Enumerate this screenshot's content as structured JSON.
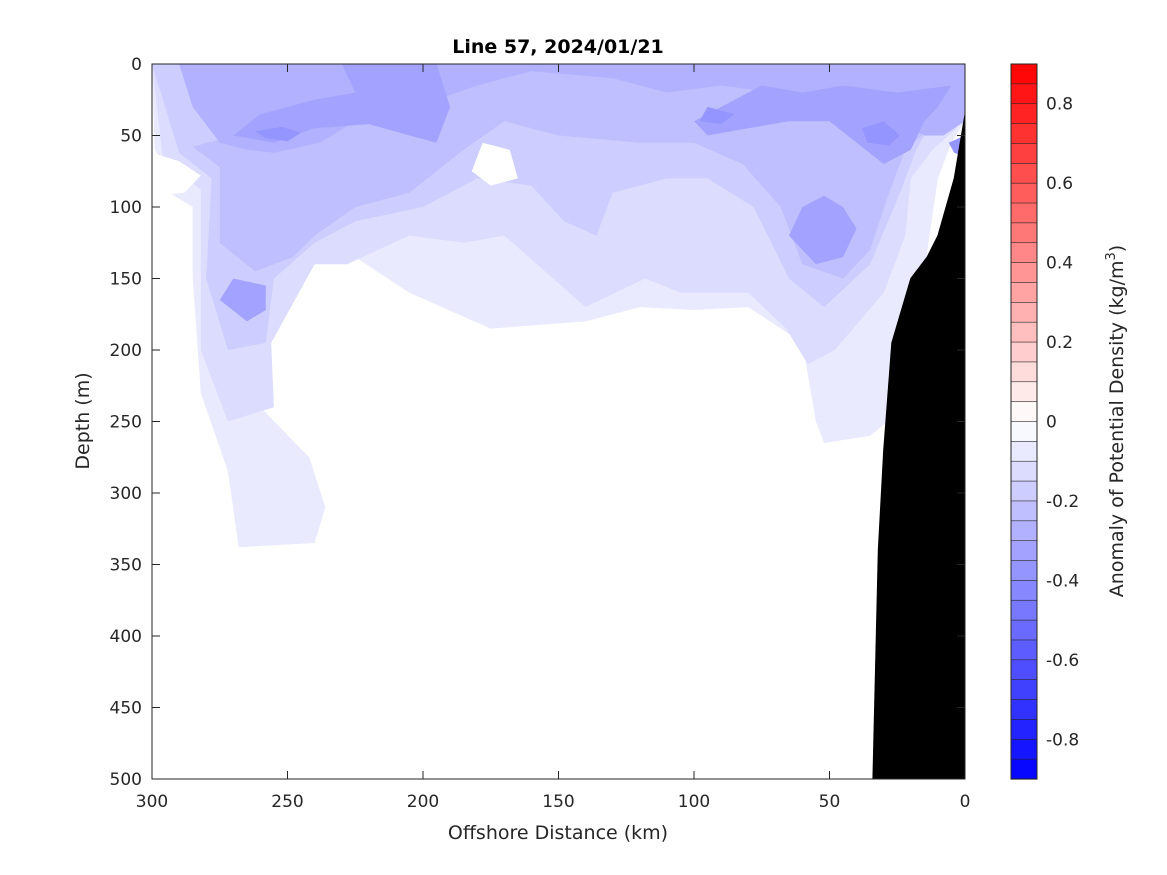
{
  "chart_data": {
    "type": "heatmap",
    "title": "Line 57, 2024/01/21",
    "xlabel": "Offshore Distance (km)",
    "ylabel": "Depth (m)",
    "xlim": [
      300,
      0
    ],
    "ylim": [
      500,
      0
    ],
    "x_ticks": [
      300,
      250,
      200,
      150,
      100,
      50,
      0
    ],
    "y_ticks": [
      0,
      50,
      100,
      150,
      200,
      250,
      300,
      350,
      400,
      450,
      500
    ],
    "colorbar": {
      "label_main": "Anomaly of Potential Density (kg/m",
      "label_sup": "3",
      "label_end": ")",
      "range": [
        -0.9,
        0.9
      ],
      "step": 0.05,
      "ticks": [
        "0.8",
        "0.6",
        "0.4",
        "0.2",
        "0",
        "-0.2",
        "-0.4",
        "-0.6",
        "-0.8"
      ],
      "tick_values": [
        0.8,
        0.6,
        0.4,
        0.2,
        0,
        -0.2,
        -0.4,
        -0.6,
        -0.8
      ],
      "positive_color": "#ff0000",
      "negative_color": "#0000ff",
      "zero_color": "#ffffff"
    },
    "bathymetry": [
      [
        0,
        35
      ],
      [
        4,
        80
      ],
      [
        10,
        120
      ],
      [
        14,
        135
      ],
      [
        20,
        150
      ],
      [
        27,
        195
      ],
      [
        30,
        270
      ],
      [
        32,
        340
      ],
      [
        33,
        420
      ],
      [
        34,
        500
      ]
    ],
    "fields": [
      {
        "level": -0.05,
        "points": [
          [
            299,
            60
          ],
          [
            295,
            72
          ],
          [
            298,
            85
          ],
          [
            285,
            100
          ],
          [
            285,
            150
          ],
          [
            282,
            230
          ],
          [
            272,
            285
          ],
          [
            268,
            338
          ],
          [
            240,
            335
          ],
          [
            236,
            310
          ],
          [
            242,
            275
          ],
          [
            260,
            240
          ],
          [
            262,
            190
          ],
          [
            245,
            120
          ],
          [
            225,
            135
          ],
          [
            205,
            160
          ],
          [
            175,
            185
          ],
          [
            140,
            180
          ],
          [
            120,
            170
          ],
          [
            100,
            172
          ],
          [
            80,
            170
          ],
          [
            60,
            195
          ],
          [
            55,
            250
          ],
          [
            52,
            265
          ],
          [
            35,
            260
          ],
          [
            22,
            240
          ],
          [
            15,
            145
          ],
          [
            10,
            80
          ],
          [
            5,
            55
          ],
          [
            0,
            40
          ],
          [
            0,
            0
          ],
          [
            300,
            0
          ]
        ]
      },
      {
        "level": -0.1,
        "points": [
          [
            296,
            66
          ],
          [
            282,
            88
          ],
          [
            282,
            200
          ],
          [
            272,
            250
          ],
          [
            255,
            240
          ],
          [
            256,
            195
          ],
          [
            240,
            140
          ],
          [
            228,
            140
          ],
          [
            205,
            120
          ],
          [
            185,
            125
          ],
          [
            170,
            120
          ],
          [
            140,
            170
          ],
          [
            118,
            150
          ],
          [
            105,
            160
          ],
          [
            80,
            160
          ],
          [
            66,
            185
          ],
          [
            58,
            210
          ],
          [
            48,
            200
          ],
          [
            30,
            160
          ],
          [
            22,
            120
          ],
          [
            20,
            80
          ],
          [
            12,
            60
          ],
          [
            3,
            45
          ],
          [
            0,
            0
          ],
          [
            300,
            0
          ]
        ]
      },
      {
        "level": -0.15,
        "points": [
          [
            290,
            62
          ],
          [
            278,
            80
          ],
          [
            280,
            150
          ],
          [
            272,
            200
          ],
          [
            258,
            195
          ],
          [
            255,
            150
          ],
          [
            240,
            125
          ],
          [
            225,
            110
          ],
          [
            200,
            100
          ],
          [
            180,
            80
          ],
          [
            160,
            85
          ],
          [
            148,
            110
          ],
          [
            136,
            120
          ],
          [
            130,
            90
          ],
          [
            110,
            80
          ],
          [
            95,
            80
          ],
          [
            78,
            100
          ],
          [
            65,
            150
          ],
          [
            52,
            170
          ],
          [
            35,
            140
          ],
          [
            24,
            90
          ],
          [
            18,
            60
          ],
          [
            0,
            0
          ],
          [
            300,
            0
          ]
        ]
      },
      {
        "level": -0.2,
        "points": [
          [
            285,
            58
          ],
          [
            275,
            72
          ],
          [
            275,
            125
          ],
          [
            262,
            145
          ],
          [
            248,
            135
          ],
          [
            240,
            120
          ],
          [
            225,
            100
          ],
          [
            205,
            90
          ],
          [
            185,
            60
          ],
          [
            170,
            40
          ],
          [
            150,
            50
          ],
          [
            120,
            55
          ],
          [
            100,
            55
          ],
          [
            82,
            70
          ],
          [
            68,
            100
          ],
          [
            60,
            140
          ],
          [
            45,
            150
          ],
          [
            35,
            130
          ],
          [
            28,
            90
          ],
          [
            22,
            60
          ],
          [
            10,
            40
          ],
          [
            0,
            0
          ],
          [
            255,
            0
          ],
          [
            265,
            30
          ],
          [
            270,
            50
          ]
        ]
      },
      {
        "level": -0.25,
        "points": [
          [
            275,
            55
          ],
          [
            265,
            60
          ],
          [
            255,
            62
          ],
          [
            238,
            55
          ],
          [
            225,
            40
          ],
          [
            210,
            30
          ],
          [
            195,
            25
          ],
          [
            180,
            15
          ],
          [
            160,
            5
          ],
          [
            130,
            10
          ],
          [
            110,
            20
          ],
          [
            90,
            15
          ],
          [
            70,
            20
          ],
          [
            55,
            30
          ],
          [
            40,
            30
          ],
          [
            25,
            40
          ],
          [
            15,
            50
          ],
          [
            8,
            50
          ],
          [
            0,
            40
          ],
          [
            0,
            0
          ],
          [
            290,
            0
          ],
          [
            285,
            30
          ]
        ]
      },
      {
        "level": -0.3,
        "points": [
          [
            270,
            50
          ],
          [
            255,
            55
          ],
          [
            240,
            45
          ],
          [
            220,
            42
          ],
          [
            205,
            50
          ],
          [
            195,
            55
          ],
          [
            190,
            30
          ],
          [
            195,
            0
          ],
          [
            230,
            0
          ],
          [
            225,
            20
          ],
          [
            240,
            25
          ],
          [
            260,
            35
          ]
        ]
      },
      {
        "level": -0.3,
        "points": [
          [
            90,
            30
          ],
          [
            100,
            40
          ],
          [
            95,
            50
          ],
          [
            80,
            45
          ],
          [
            65,
            40
          ],
          [
            50,
            40
          ],
          [
            40,
            55
          ],
          [
            30,
            70
          ],
          [
            20,
            60
          ],
          [
            15,
            40
          ],
          [
            10,
            30
          ],
          [
            5,
            15
          ],
          [
            25,
            20
          ],
          [
            45,
            15
          ],
          [
            60,
            20
          ],
          [
            75,
            15
          ]
        ]
      },
      {
        "level": -0.3,
        "points": [
          [
            60,
            100
          ],
          [
            65,
            120
          ],
          [
            55,
            140
          ],
          [
            45,
            135
          ],
          [
            40,
            115
          ],
          [
            45,
            100
          ],
          [
            52,
            92
          ]
        ]
      },
      {
        "level": -0.3,
        "points": [
          [
            270,
            150
          ],
          [
            275,
            165
          ],
          [
            265,
            180
          ],
          [
            258,
            172
          ],
          [
            258,
            155
          ]
        ]
      },
      {
        "level": -0.35,
        "points": [
          [
            262,
            47
          ],
          [
            258,
            52
          ],
          [
            250,
            54
          ],
          [
            245,
            48
          ],
          [
            252,
            44
          ]
        ]
      },
      {
        "level": -0.35,
        "points": [
          [
            38,
            45
          ],
          [
            36,
            55
          ],
          [
            28,
            57
          ],
          [
            24,
            50
          ],
          [
            30,
            40
          ]
        ]
      },
      {
        "level": -0.35,
        "points": [
          [
            95,
            30
          ],
          [
            98,
            40
          ],
          [
            90,
            42
          ],
          [
            85,
            35
          ]
        ]
      },
      {
        "level": -0.35,
        "points": [
          [
            6,
            55
          ],
          [
            4,
            62
          ],
          [
            0,
            65
          ],
          [
            0,
            50
          ]
        ]
      }
    ],
    "highs": [
      {
        "level": 0.0,
        "points": [
          [
            300,
            62
          ],
          [
            290,
            68
          ],
          [
            282,
            78
          ],
          [
            288,
            90
          ],
          [
            300,
            92
          ]
        ]
      },
      {
        "level": 0.0,
        "points": [
          [
            178,
            55
          ],
          [
            168,
            60
          ],
          [
            165,
            80
          ],
          [
            175,
            85
          ],
          [
            182,
            75
          ]
        ]
      },
      {
        "level": 0.0,
        "points": [
          [
            138,
            355
          ],
          [
            125,
            337
          ],
          [
            105,
            337
          ],
          [
            95,
            345
          ],
          [
            80,
            365
          ],
          [
            78,
            420
          ],
          [
            75,
            480
          ],
          [
            70,
            500
          ],
          [
            135,
            500
          ],
          [
            132,
            450
          ]
        ]
      },
      {
        "level": 0.0,
        "points": [
          [
            52,
            360
          ],
          [
            45,
            355
          ],
          [
            35,
            360
          ],
          [
            33,
            500
          ],
          [
            60,
            500
          ],
          [
            55,
            470
          ],
          [
            50,
            420
          ],
          [
            48,
            390
          ]
        ]
      }
    ]
  }
}
